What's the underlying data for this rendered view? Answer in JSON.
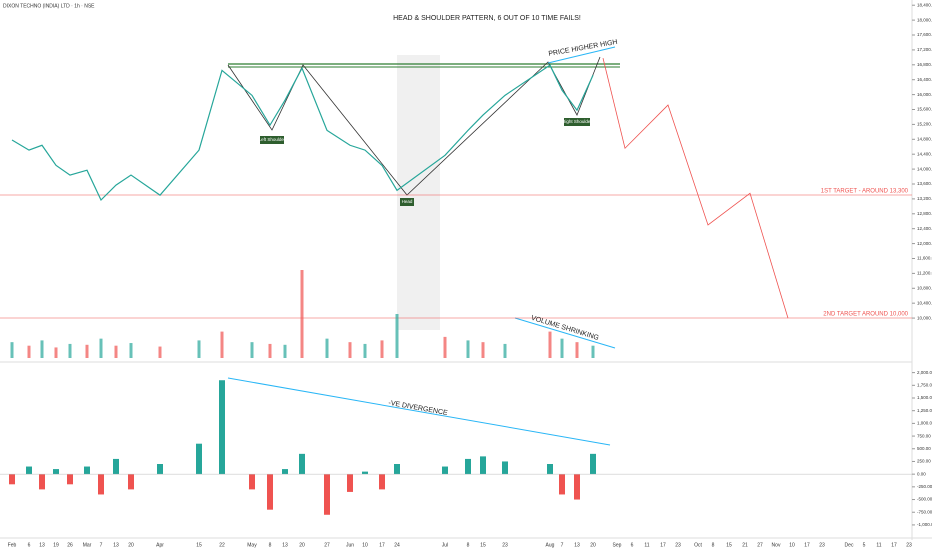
{
  "chart_data": {
    "type": "line",
    "symbol": "DIXON TECHNO (INDIA) LTD · 1h · NSE",
    "title": "HEAD & SHOULDER PATTERN, 6 OUT OF 10 TIME FAILS!",
    "annotations": {
      "higher_high": "PRICE HIGHER HIGH",
      "left_shoulder": "Left Shoulder",
      "head": "Head",
      "right_shoulder": "Right Shoulder",
      "target1": "1ST TARGET - AROUND 13,300",
      "target2": "2ND TARGET AROUND 10,000",
      "volume": "VOLUME SHRINKING",
      "divergence": "-VE DIVERGENCE"
    },
    "categories": [
      "Feb",
      "6",
      "13",
      "19",
      "26",
      "Mar",
      "7",
      "13",
      "20",
      "Apr",
      "15",
      "22",
      "May",
      "8",
      "13",
      "20",
      "27",
      "Jun",
      "10",
      "17",
      "24",
      "Jul",
      "8",
      "15",
      "23",
      "Aug",
      "7",
      "13",
      "20",
      "Sep",
      "6",
      "11",
      "17",
      "23",
      "Oct",
      "8",
      "15",
      "21",
      "27",
      "Nov",
      "10",
      "17",
      "23",
      "Dec",
      "5",
      "11",
      "17",
      "23"
    ],
    "series": [
      {
        "name": "Price",
        "color": "#26a69a",
        "values": [
          14780,
          14510,
          14640,
          14100,
          13840,
          13970,
          13170,
          13570,
          13840,
          13300,
          14510,
          16650,
          15980,
          15180,
          15850,
          16710,
          15040,
          14640,
          14510,
          14100,
          13430,
          14370,
          15040,
          15450,
          15980,
          16790,
          16120,
          15580,
          16520,
          null,
          null,
          null,
          null,
          null,
          null,
          null,
          null,
          null,
          null,
          null,
          null,
          null,
          null,
          null,
          null,
          null,
          null,
          null
        ]
      },
      {
        "name": "Volume",
        "color": "#ef5350",
        "values": [
          18,
          14,
          20,
          12,
          16,
          15,
          22,
          14,
          17,
          13,
          20,
          30,
          18,
          16,
          15,
          100,
          22,
          18,
          16,
          20,
          50,
          24,
          20,
          18,
          16,
          30,
          22,
          18,
          14,
          null,
          null,
          null,
          null,
          null,
          null,
          null,
          null,
          null,
          null,
          null,
          null,
          null,
          null,
          null,
          null,
          null,
          null,
          null
        ]
      },
      {
        "name": "Oscillator",
        "color": "#26a69a",
        "values": [
          -200,
          150,
          -300,
          100,
          -200,
          150,
          -400,
          300,
          -300,
          200,
          600,
          1850,
          -300,
          -700,
          100,
          400,
          -800,
          -350,
          50,
          -300,
          200,
          150,
          300,
          350,
          250,
          200,
          -400,
          -500,
          400,
          null,
          null,
          null,
          null,
          null,
          null,
          null,
          null,
          null,
          null,
          null,
          null,
          null,
          null,
          null,
          null,
          null,
          null,
          null
        ]
      }
    ],
    "projection": [
      16980,
      14560,
      15720,
      12500,
      13350,
      10000
    ],
    "ylim": [
      9680,
      18540
    ],
    "yticks": [
      {
        "value": 10000,
        "label": "10,000.00"
      },
      {
        "value": 10400,
        "label": "10,400.00"
      },
      {
        "value": 10800,
        "label": "10,800.00"
      },
      {
        "value": 11200,
        "label": "11,200.00"
      },
      {
        "value": 11600,
        "label": "11,600.00"
      },
      {
        "value": 12000,
        "label": "12,000.00"
      },
      {
        "value": 12400,
        "label": "12,400.00"
      },
      {
        "value": 12800,
        "label": "12,800.00"
      },
      {
        "value": 13200,
        "label": "13,200.00"
      },
      {
        "value": 13600,
        "label": "13,600.00"
      },
      {
        "value": 14000,
        "label": "14,000.00"
      },
      {
        "value": 14400,
        "label": "14,400.00"
      },
      {
        "value": 14800,
        "label": "14,800.00"
      },
      {
        "value": 15200,
        "label": "15,200.00"
      },
      {
        "value": 15600,
        "label": "15,600.00"
      },
      {
        "value": 16000,
        "label": "16,000.00"
      },
      {
        "value": 16400,
        "label": "16,400.00"
      },
      {
        "value": 16800,
        "label": "16,800.00"
      },
      {
        "value": 17200,
        "label": "17,200.00"
      },
      {
        "value": 17600,
        "label": "17,600.00"
      },
      {
        "value": 18000,
        "label": "18,000.00"
      },
      {
        "value": 18400,
        "label": "18,400.00"
      }
    ],
    "vlim": [
      0,
      100
    ],
    "y2lim": [
      -1100,
      2150
    ],
    "y2ticks": [
      {
        "value": 2000,
        "label": "2,000.00"
      },
      {
        "value": 1750,
        "label": "1,750.00"
      },
      {
        "value": 1500,
        "label": "1,500.00"
      },
      {
        "value": 1250,
        "label": "1,250.00"
      },
      {
        "value": 1000,
        "label": "1,000.00"
      },
      {
        "value": 750,
        "label": "750.00"
      },
      {
        "value": 500,
        "label": "500.00"
      },
      {
        "value": 250,
        "label": "250.00"
      },
      {
        "value": 0,
        "label": "0.00"
      },
      {
        "value": -250,
        "label": "-250.00"
      },
      {
        "value": -500,
        "label": "-500.00"
      },
      {
        "value": -750,
        "label": "-750.00"
      },
      {
        "value": -1000,
        "label": "-1,000.00"
      }
    ],
    "down_color": "#ef5350"
  }
}
